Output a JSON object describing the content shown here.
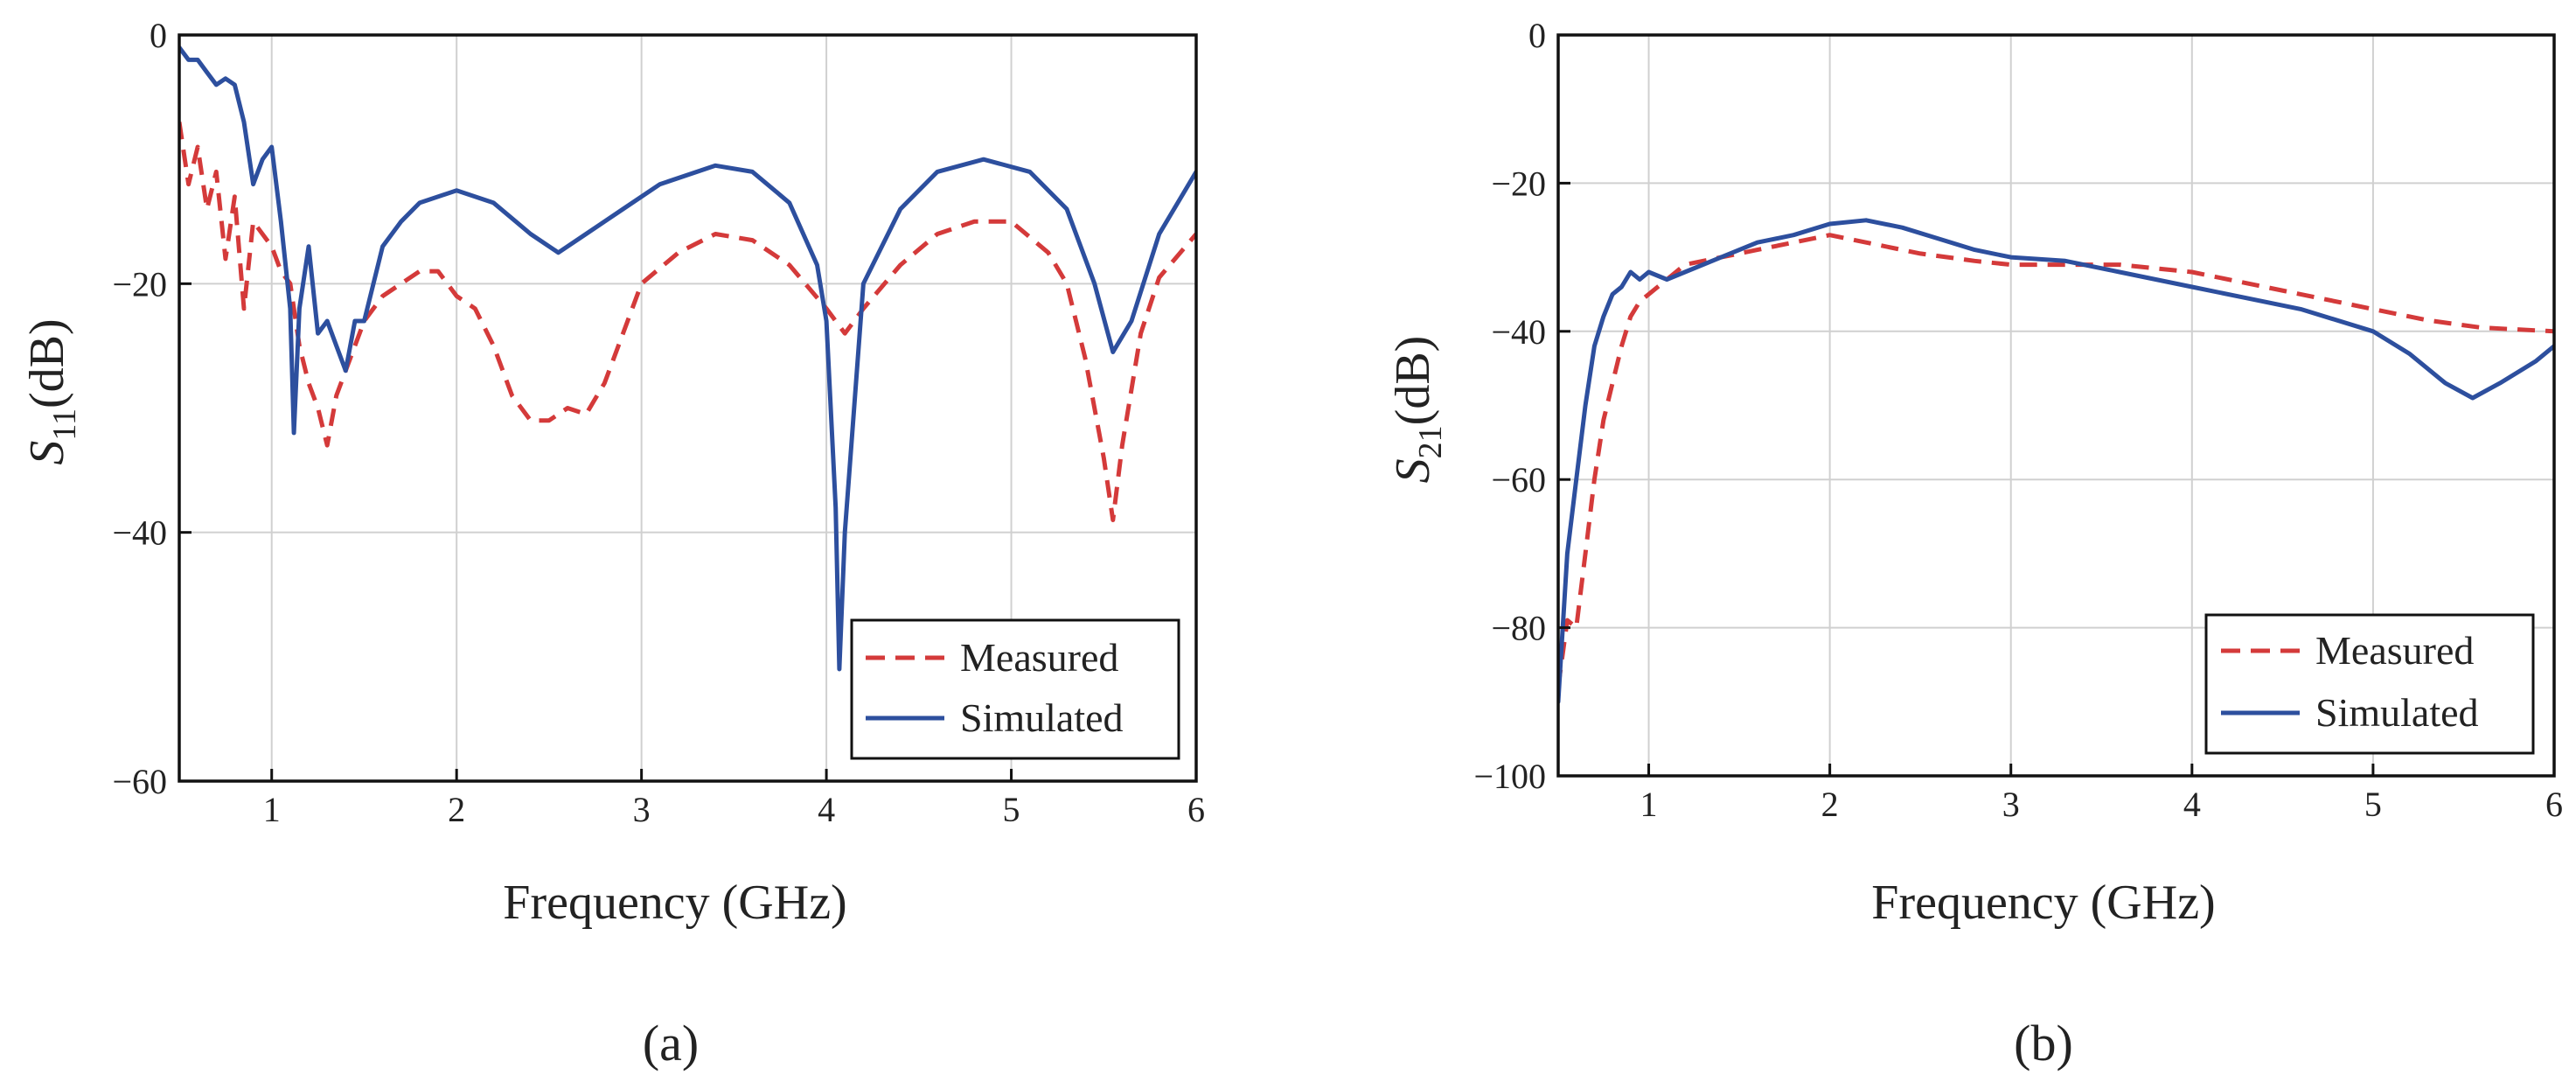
{
  "figure": {
    "legend_measured": "Measured",
    "legend_simulated": "Simulated"
  },
  "colors": {
    "measured": "#d43a3a",
    "simulated": "#2d4f9e"
  },
  "chart_data": [
    {
      "id": "a",
      "type": "line",
      "caption": "(a)",
      "title": "",
      "xlabel": "Frequency (GHz)",
      "ylabel_main": "S",
      "ylabel_sub": "11",
      "ylabel_unit": "(dB)",
      "xlim": [
        0.5,
        6
      ],
      "ylim": [
        -60,
        0
      ],
      "xticks": [
        1,
        2,
        3,
        4,
        5,
        6
      ],
      "yticks": [
        0,
        -20,
        -40,
        -60
      ],
      "grid": true,
      "legend_position": "bottom-right",
      "series": [
        {
          "name": "Measured",
          "style": "dashed",
          "x": [
            0.5,
            0.55,
            0.6,
            0.65,
            0.7,
            0.75,
            0.8,
            0.85,
            0.9,
            1.0,
            1.05,
            1.1,
            1.15,
            1.2,
            1.25,
            1.3,
            1.35,
            1.4,
            1.45,
            1.5,
            1.6,
            1.7,
            1.8,
            1.9,
            2.0,
            2.1,
            2.2,
            2.3,
            2.4,
            2.5,
            2.6,
            2.7,
            2.8,
            2.9,
            3.0,
            3.2,
            3.4,
            3.6,
            3.8,
            4.0,
            4.05,
            4.1,
            4.2,
            4.4,
            4.6,
            4.8,
            5.0,
            5.2,
            5.3,
            5.4,
            5.5,
            5.55,
            5.6,
            5.7,
            5.8,
            6.0
          ],
          "y": [
            -7,
            -12,
            -9,
            -14,
            -11,
            -18,
            -13,
            -22,
            -15,
            -17,
            -19,
            -20,
            -25,
            -28,
            -30,
            -33,
            -29,
            -27,
            -25,
            -23,
            -21,
            -20,
            -19,
            -19,
            -21,
            -22,
            -25,
            -29,
            -31,
            -31,
            -30,
            -30.5,
            -28,
            -24,
            -20,
            -17.5,
            -16,
            -16.5,
            -18.5,
            -22,
            -23,
            -24,
            -22,
            -18.5,
            -16,
            -15,
            -15,
            -17.5,
            -20,
            -26,
            -34,
            -39,
            -33,
            -24,
            -19.5,
            -16
          ]
        },
        {
          "name": "Simulated",
          "style": "solid",
          "x": [
            0.5,
            0.55,
            0.6,
            0.65,
            0.7,
            0.75,
            0.8,
            0.85,
            0.9,
            0.95,
            1.0,
            1.05,
            1.1,
            1.12,
            1.15,
            1.2,
            1.25,
            1.3,
            1.35,
            1.4,
            1.45,
            1.5,
            1.6,
            1.7,
            1.8,
            2.0,
            2.2,
            2.4,
            2.55,
            2.7,
            2.9,
            3.1,
            3.4,
            3.6,
            3.8,
            3.95,
            4.0,
            4.05,
            4.07,
            4.1,
            4.2,
            4.4,
            4.6,
            4.85,
            5.1,
            5.3,
            5.45,
            5.55,
            5.65,
            5.8,
            6.0
          ],
          "y": [
            -1,
            -2,
            -2,
            -3,
            -4,
            -3.5,
            -4,
            -7,
            -12,
            -10,
            -9,
            -15,
            -22,
            -32,
            -22,
            -17,
            -24,
            -23,
            -25,
            -27,
            -23,
            -23,
            -17,
            -15,
            -13.5,
            -12.5,
            -13.5,
            -16,
            -17.5,
            -16,
            -14,
            -12,
            -10.5,
            -11,
            -13.5,
            -18.5,
            -23,
            -38,
            -51,
            -40,
            -20,
            -14,
            -11,
            -10,
            -11,
            -14,
            -20,
            -25.5,
            -23,
            -16,
            -11
          ]
        }
      ]
    },
    {
      "id": "b",
      "type": "line",
      "caption": "(b)",
      "title": "",
      "xlabel": "Frequency (GHz)",
      "ylabel_main": "S",
      "ylabel_sub": "21",
      "ylabel_unit": "(dB)",
      "xlim": [
        0.5,
        6
      ],
      "ylim": [
        -100,
        0
      ],
      "xticks": [
        1,
        2,
        3,
        4,
        5,
        6
      ],
      "yticks": [
        0,
        -20,
        -40,
        -60,
        -80,
        -100
      ],
      "grid": true,
      "legend_position": "bottom-right",
      "series": [
        {
          "name": "Measured",
          "style": "dashed",
          "x": [
            0.5,
            0.55,
            0.6,
            0.65,
            0.7,
            0.75,
            0.8,
            0.85,
            0.9,
            0.95,
            1.0,
            1.1,
            1.2,
            1.4,
            1.6,
            1.8,
            2.0,
            2.2,
            2.5,
            2.8,
            3.0,
            3.3,
            3.6,
            4.0,
            4.3,
            4.6,
            5.0,
            5.3,
            5.6,
            6.0
          ],
          "y": [
            -88,
            -79,
            -80,
            -70,
            -60,
            -52,
            -47,
            -42,
            -38,
            -36,
            -35,
            -33,
            -31,
            -30,
            -29,
            -28,
            -27,
            -28,
            -29.5,
            -30.5,
            -31,
            -31,
            -31,
            -32,
            -33.5,
            -35,
            -37,
            -38.5,
            -39.5,
            -40
          ]
        },
        {
          "name": "Simulated",
          "style": "solid",
          "x": [
            0.5,
            0.55,
            0.6,
            0.65,
            0.7,
            0.75,
            0.8,
            0.85,
            0.9,
            0.95,
            1.0,
            1.1,
            1.2,
            1.4,
            1.6,
            1.8,
            2.0,
            2.2,
            2.4,
            2.6,
            2.8,
            3.0,
            3.3,
            3.6,
            4.0,
            4.3,
            4.6,
            5.0,
            5.2,
            5.4,
            5.55,
            5.7,
            5.9,
            6.0
          ],
          "y": [
            -90,
            -70,
            -60,
            -50,
            -42,
            -38,
            -35,
            -34,
            -32,
            -33,
            -32,
            -33,
            -32,
            -30,
            -28,
            -27,
            -25.5,
            -25,
            -26,
            -27.5,
            -29,
            -30,
            -30.5,
            -32,
            -34,
            -35.5,
            -37,
            -40,
            -43,
            -47,
            -49,
            -47,
            -44,
            -42
          ]
        }
      ]
    }
  ]
}
